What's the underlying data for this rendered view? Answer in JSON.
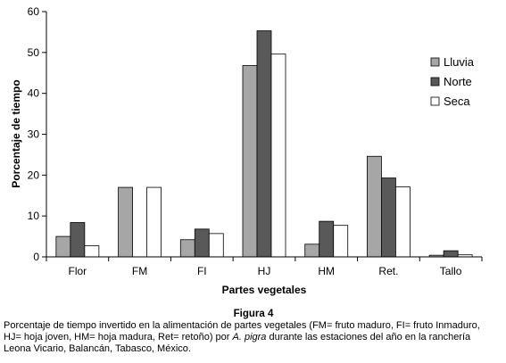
{
  "chart_data": {
    "type": "bar",
    "categories": [
      "Flor",
      "FM",
      "FI",
      "HJ",
      "HM",
      "Ret.",
      "Tallo"
    ],
    "series": [
      {
        "name": "Lluvia",
        "values": [
          5.0,
          17.0,
          4.2,
          46.8,
          3.1,
          24.6,
          0.4
        ],
        "color": "#a6a6a6"
      },
      {
        "name": "Norte",
        "values": [
          8.4,
          0.0,
          6.8,
          55.3,
          8.7,
          19.3,
          1.5
        ],
        "color": "#595959"
      },
      {
        "name": "Seca",
        "values": [
          2.7,
          17.0,
          5.7,
          49.6,
          7.7,
          17.1,
          0.5
        ],
        "color": "#ffffff"
      }
    ],
    "ylim": [
      0,
      60
    ],
    "yticks": [
      "0",
      "10",
      "20",
      "30",
      "40",
      "50",
      "60"
    ],
    "xlabel": "Partes vegetales",
    "ylabel": "Porcentaje de tiempo",
    "legend_position": "right",
    "grid": false
  },
  "figure": {
    "label": "Figura 4",
    "caption_lines": [
      "Porcentaje de tiempo invertido en la alimentación de partes vegetales (FM= fruto maduro, FI= fruto Inmaduro,",
      "HJ= hoja joven, HM= hoja madura, Ret= retoño) por",
      "A. pigra",
      "durante las estaciones del año en la ranchería",
      "Leona Vicario, Balancán, Tabasco, México."
    ]
  }
}
